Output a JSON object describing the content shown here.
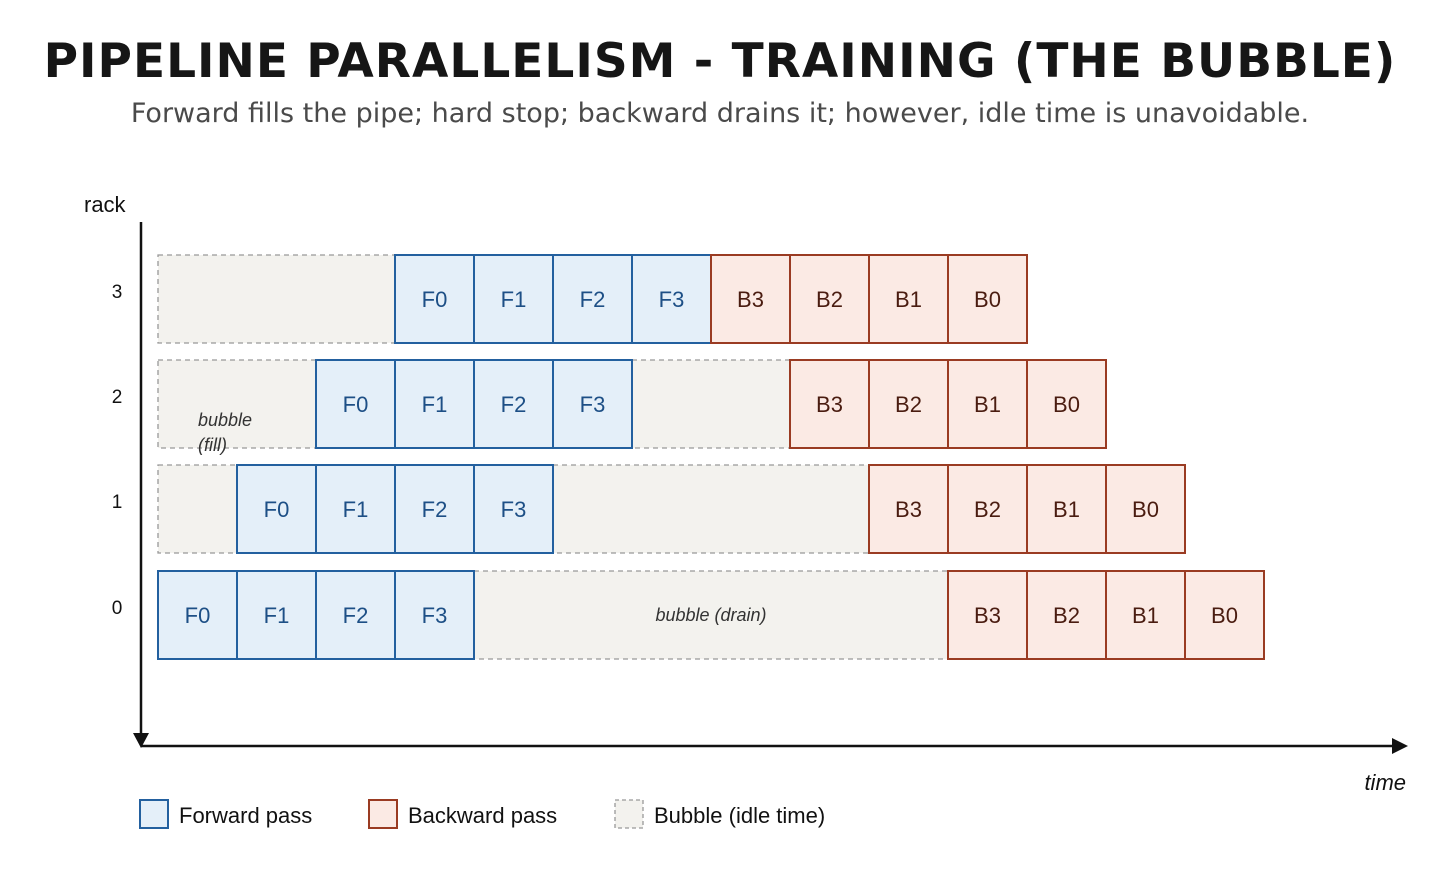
{
  "title": "PIPELINE PARALLELISM - TRAINING (THE BUBBLE)",
  "subtitle": "Forward fills the pipe; hard stop; backward drains it; however, idle time is unavoidable.",
  "axes": {
    "y_label": "rack",
    "x_label": "time",
    "racks": [
      "0",
      "1",
      "2",
      "3"
    ]
  },
  "colors": {
    "forward_fill": "#e4eff9",
    "forward_stroke": "#23609f",
    "forward_text": "#1d4f86",
    "backward_fill": "#fbeae4",
    "backward_stroke": "#9a3b22",
    "backward_text": "#4a1c10",
    "bubble_fill": "#f3f2ee",
    "bubble_stroke": "#999999"
  },
  "schedule": [
    {
      "rack": 0,
      "segments": [
        {
          "type": "forward",
          "label": "F0",
          "start": 0
        },
        {
          "type": "forward",
          "label": "F1",
          "start": 1
        },
        {
          "type": "forward",
          "label": "F2",
          "start": 2
        },
        {
          "type": "forward",
          "label": "F3",
          "start": 3
        },
        {
          "type": "bubble",
          "start": 4,
          "length": 6,
          "note": "bubble (drain)"
        },
        {
          "type": "backward",
          "label": "B3",
          "start": 10
        },
        {
          "type": "backward",
          "label": "B2",
          "start": 11
        },
        {
          "type": "backward",
          "label": "B1",
          "start": 12
        },
        {
          "type": "backward",
          "label": "B0",
          "start": 13
        }
      ]
    },
    {
      "rack": 1,
      "segments": [
        {
          "type": "bubble",
          "start": 0,
          "length": 1
        },
        {
          "type": "forward",
          "label": "F0",
          "start": 1
        },
        {
          "type": "forward",
          "label": "F1",
          "start": 2
        },
        {
          "type": "forward",
          "label": "F2",
          "start": 3
        },
        {
          "type": "forward",
          "label": "F3",
          "start": 4
        },
        {
          "type": "bubble",
          "start": 5,
          "length": 4
        },
        {
          "type": "backward",
          "label": "B3",
          "start": 9
        },
        {
          "type": "backward",
          "label": "B2",
          "start": 10
        },
        {
          "type": "backward",
          "label": "B1",
          "start": 11
        },
        {
          "type": "backward",
          "label": "B0",
          "start": 12
        }
      ]
    },
    {
      "rack": 2,
      "segments": [
        {
          "type": "bubble",
          "start": 0,
          "length": 2,
          "note": "bubble\n(fill)"
        },
        {
          "type": "forward",
          "label": "F0",
          "start": 2
        },
        {
          "type": "forward",
          "label": "F1",
          "start": 3
        },
        {
          "type": "forward",
          "label": "F2",
          "start": 4
        },
        {
          "type": "forward",
          "label": "F3",
          "start": 5
        },
        {
          "type": "bubble",
          "start": 6,
          "length": 2
        },
        {
          "type": "backward",
          "label": "B3",
          "start": 8
        },
        {
          "type": "backward",
          "label": "B2",
          "start": 9
        },
        {
          "type": "backward",
          "label": "B1",
          "start": 10
        },
        {
          "type": "backward",
          "label": "B0",
          "start": 11
        }
      ]
    },
    {
      "rack": 3,
      "segments": [
        {
          "type": "bubble",
          "start": 0,
          "length": 3
        },
        {
          "type": "forward",
          "label": "F0",
          "start": 3
        },
        {
          "type": "forward",
          "label": "F1",
          "start": 4
        },
        {
          "type": "forward",
          "label": "F2",
          "start": 5
        },
        {
          "type": "forward",
          "label": "F3",
          "start": 6
        },
        {
          "type": "backward",
          "label": "B3",
          "start": 7
        },
        {
          "type": "backward",
          "label": "B2",
          "start": 8
        },
        {
          "type": "backward",
          "label": "B1",
          "start": 9
        },
        {
          "type": "backward",
          "label": "B0",
          "start": 10
        }
      ]
    }
  ],
  "legend": [
    {
      "type": "forward",
      "label": "Forward pass"
    },
    {
      "type": "backward",
      "label": "Backward pass"
    },
    {
      "type": "bubble",
      "label": "Bubble (idle time)"
    }
  ]
}
